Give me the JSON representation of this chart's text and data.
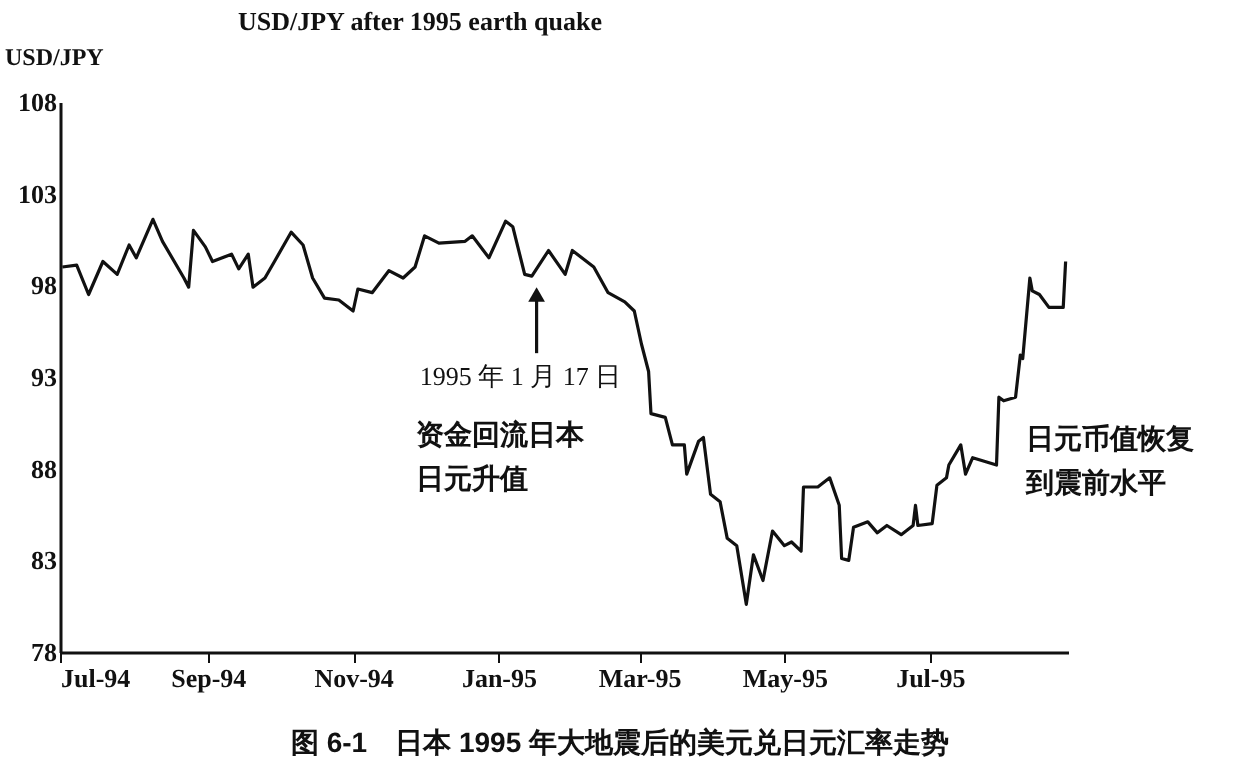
{
  "chart_data": {
    "type": "line",
    "title": "USD/JPY after 1995 earth quake",
    "ylabel": "USD/JPY",
    "x": [
      "1994-07-02",
      "1994-07-08",
      "1994-07-13",
      "1994-07-19",
      "1994-07-25",
      "1994-07-30",
      "1994-08-02",
      "1994-08-09",
      "1994-08-13",
      "1994-08-22",
      "1994-08-24",
      "1994-08-26",
      "1994-08-31",
      "1994-09-03",
      "1994-09-11",
      "1994-09-14",
      "1994-09-18",
      "1994-09-20",
      "1994-09-25",
      "1994-09-29",
      "1994-10-06",
      "1994-10-11",
      "1994-10-15",
      "1994-10-20",
      "1994-10-26",
      "1994-11-01",
      "1994-11-03",
      "1994-11-09",
      "1994-11-16",
      "1994-11-22",
      "1994-11-27",
      "1994-12-01",
      "1994-12-07",
      "1994-12-18",
      "1994-12-21",
      "1994-12-28",
      "1995-01-04",
      "1995-01-07",
      "1995-01-12",
      "1995-01-15",
      "1995-01-22",
      "1995-01-29",
      "1995-02-01",
      "1995-02-10",
      "1995-02-16",
      "1995-02-23",
      "1995-02-27",
      "1995-03-02",
      "1995-03-05",
      "1995-03-06",
      "1995-03-12",
      "1995-03-15",
      "1995-03-20",
      "1995-03-21",
      "1995-03-26",
      "1995-03-28",
      "1995-03-31",
      "1995-04-04",
      "1995-04-07",
      "1995-04-11",
      "1995-04-15",
      "1995-04-18",
      "1995-04-22",
      "1995-04-26",
      "1995-05-01",
      "1995-05-04",
      "1995-05-08",
      "1995-05-09",
      "1995-05-15",
      "1995-05-20",
      "1995-05-24",
      "1995-05-25",
      "1995-05-28",
      "1995-05-30",
      "1995-06-05",
      "1995-06-09",
      "1995-06-13",
      "1995-06-19",
      "1995-06-24",
      "1995-06-25",
      "1995-06-26",
      "1995-07-02",
      "1995-07-04",
      "1995-07-08",
      "1995-07-09",
      "1995-07-14",
      "1995-07-16",
      "1995-07-19",
      "1995-07-29",
      "1995-07-30",
      "1995-08-01",
      "1995-08-06",
      "1995-08-08",
      "1995-08-09",
      "1995-08-12",
      "1995-08-13",
      "1995-08-16",
      "1995-08-20",
      "1995-08-26",
      "1995-08-27"
    ],
    "series": [
      {
        "color": "#111111",
        "values": [
          99.0,
          99.1,
          97.5,
          99.3,
          98.6,
          100.2,
          99.5,
          101.6,
          100.4,
          98.4,
          97.9,
          101.0,
          100.1,
          99.3,
          99.7,
          98.9,
          99.7,
          97.9,
          98.4,
          99.3,
          100.9,
          100.2,
          98.4,
          97.3,
          97.2,
          96.6,
          97.8,
          97.6,
          98.8,
          98.4,
          99.0,
          100.7,
          100.3,
          100.4,
          100.7,
          99.5,
          101.5,
          101.2,
          98.6,
          98.5,
          99.9,
          98.6,
          99.9,
          99.0,
          97.6,
          97.1,
          96.6,
          94.8,
          93.3,
          91.0,
          90.8,
          89.3,
          89.3,
          87.7,
          89.5,
          89.7,
          86.6,
          86.2,
          84.2,
          83.8,
          80.6,
          83.3,
          81.9,
          84.6,
          83.8,
          84.0,
          83.5,
          87.0,
          87.0,
          87.5,
          86.0,
          83.1,
          83.0,
          84.8,
          85.1,
          84.5,
          84.9,
          84.4,
          84.9,
          86.0,
          84.9,
          85.0,
          87.1,
          87.5,
          88.2,
          89.3,
          87.7,
          88.6,
          88.2,
          91.9,
          91.7,
          91.9,
          94.2,
          94.0,
          98.4,
          97.7,
          97.5,
          96.8,
          96.8,
          99.3
        ]
      }
    ],
    "xlim": [
      "1994-07-01",
      "1995-08-28"
    ],
    "xticks": [
      {
        "value": "1994-07-01",
        "label": "Jul-94"
      },
      {
        "value": "1994-09-01",
        "label": "Sep-94"
      },
      {
        "value": "1994-11-01",
        "label": "Nov-94"
      },
      {
        "value": "1995-01-01",
        "label": "Jan-95"
      },
      {
        "value": "1995-03-01",
        "label": "Mar-95"
      },
      {
        "value": "1995-05-01",
        "label": "May-95"
      },
      {
        "value": "1995-07-01",
        "label": "Jul-95"
      }
    ],
    "ylim": [
      78,
      108
    ],
    "yticks": [
      78,
      83,
      88,
      93,
      98,
      103,
      108
    ],
    "grid": false,
    "marker": "none",
    "line_style": "solid",
    "annotations": [
      {
        "text": "1995 年 1 月 17 日",
        "x": "1995-01-17",
        "y": 98.5
      },
      "资金回流日本",
      "日元升值",
      "日元币值恢复",
      "到震前水平",
      "图 6-1　日本 1995 年大地震后的美元兑日元汇率走势"
    ]
  }
}
